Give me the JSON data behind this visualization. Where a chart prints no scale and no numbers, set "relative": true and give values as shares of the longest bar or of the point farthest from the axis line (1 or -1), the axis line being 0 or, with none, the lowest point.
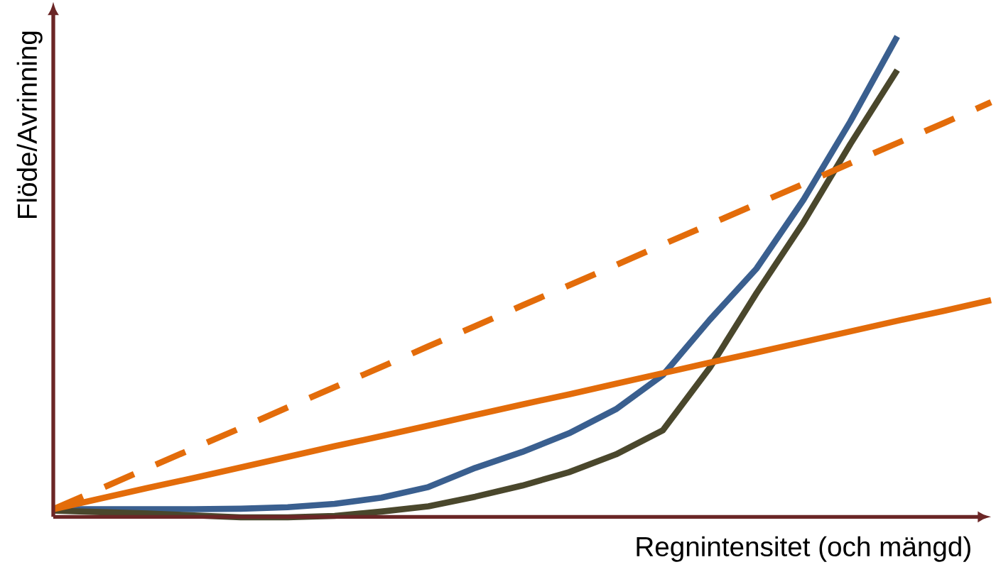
{
  "chart_data": {
    "type": "line",
    "relative": true,
    "xlabel": "Regnintensitet (och mängd)",
    "ylabel": "Flöde/Avrinning",
    "marker": "none",
    "categories": [
      null,
      null,
      null,
      null,
      null,
      null,
      null,
      null,
      null,
      null,
      null,
      null,
      null,
      null,
      null,
      null,
      null,
      null,
      null,
      null,
      null
    ],
    "series": [
      {
        "color": "#3a5f8f",
        "line_style": "solid",
        "values": [
          0.016,
          0.016,
          0.016,
          0.016,
          0.017,
          0.02,
          0.027,
          0.04,
          0.062,
          0.102,
          0.135,
          0.174,
          0.224,
          0.295,
          0.41,
          0.517,
          0.66,
          0.823,
          1.0,
          null,
          null
        ]
      },
      {
        "color": "#4a472c",
        "line_style": "solid",
        "values": [
          0.013,
          0.01,
          0.007,
          0.003,
          -0.001,
          -0.001,
          0.002,
          0.011,
          0.022,
          0.042,
          0.065,
          0.093,
          0.13,
          0.18,
          0.31,
          0.466,
          0.613,
          0.776,
          0.93,
          null,
          null
        ]
      },
      {
        "color": "#e36c0a",
        "line_style": "solid",
        "values": [
          0.016,
          0.038,
          0.06,
          0.081,
          0.103,
          0.125,
          0.147,
          0.168,
          0.19,
          0.212,
          0.234,
          0.255,
          0.277,
          0.299,
          0.321,
          0.342,
          0.364,
          0.386,
          0.408,
          0.429,
          0.451
        ]
      },
      {
        "color": "#e36c0a",
        "line_style": "dashed",
        "values": [
          0.016,
          0.058,
          0.101,
          0.143,
          0.185,
          0.228,
          0.27,
          0.312,
          0.355,
          0.397,
          0.44,
          0.482,
          0.524,
          0.567,
          0.609,
          0.651,
          0.693,
          0.736,
          0.778,
          0.82,
          0.863
        ]
      }
    ]
  }
}
